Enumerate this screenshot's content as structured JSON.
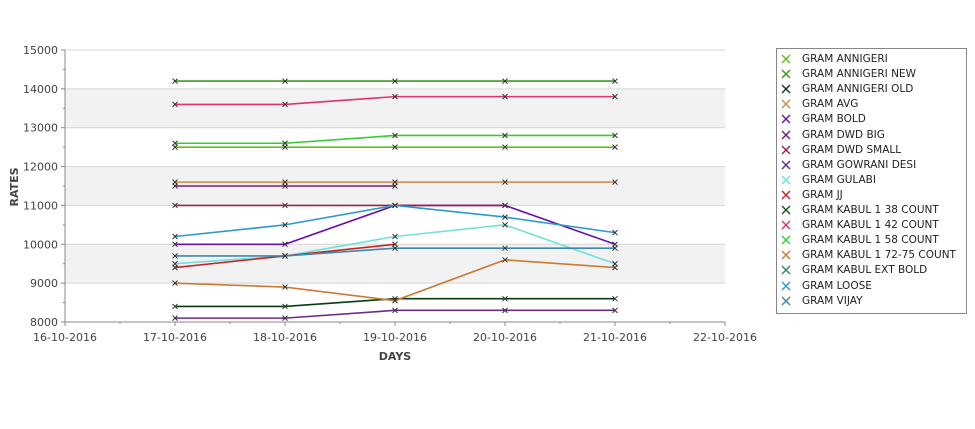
{
  "chart_data": {
    "type": "line",
    "title": "",
    "xlabel": "DAYS",
    "ylabel": "RATES",
    "ylim": [
      8000,
      15000
    ],
    "yticks": [
      "8000",
      "9000",
      "10000",
      "11000",
      "12000",
      "13000",
      "14000",
      "15000"
    ],
    "xlim": [
      "16-10-2016",
      "22-10-2016"
    ],
    "x_tick_labels": [
      "16-10-2016",
      "17-10-2016",
      "18-10-2016",
      "19-10-2016",
      "20-10-2016",
      "21-10-2016",
      "22-10-2016"
    ],
    "x": [
      "17-10-2016",
      "18-10-2016",
      "19-10-2016",
      "20-10-2016",
      "21-10-2016"
    ],
    "grid": true,
    "legend_position": "right",
    "series": [
      {
        "name": "GRAM ANNIGERI",
        "color": "#5fbf1f",
        "values": [
          12500,
          12500,
          12500,
          12500,
          12500
        ]
      },
      {
        "name": "GRAM ANNIGERI NEW",
        "color": "#3a9a1a",
        "values": [
          14200,
          14200,
          14200,
          14200,
          14200
        ]
      },
      {
        "name": "GRAM ANNIGERI OLD",
        "color": "#0a3a12",
        "values": [
          8400,
          8400,
          8600,
          8600,
          8600
        ]
      },
      {
        "name": "GRAM AVG",
        "color": "#d08a4a",
        "values": [
          11600,
          11600,
          11600,
          11600,
          11600
        ]
      },
      {
        "name": "GRAM BOLD",
        "color": "#6a10b0",
        "values": [
          10000,
          10000,
          11000,
          11000,
          10000
        ]
      },
      {
        "name": "GRAM DWD BIG",
        "color": "#7a1a7a",
        "values": [
          11500,
          11500,
          11500,
          null,
          null
        ]
      },
      {
        "name": "GRAM DWD SMALL",
        "color": "#a0204a",
        "values": [
          11000,
          11000,
          11000,
          11000,
          null
        ]
      },
      {
        "name": "GRAM GOWRANI DESI",
        "color": "#6a2c8a",
        "values": [
          8100,
          8100,
          8300,
          8300,
          8300
        ]
      },
      {
        "name": "GRAM GULABI",
        "color": "#6ee0e0",
        "values": [
          9500,
          9700,
          10200,
          10500,
          9500
        ]
      },
      {
        "name": "GRAM JJ",
        "color": "#cc2222",
        "values": [
          9400,
          9700,
          10000,
          null,
          null
        ]
      },
      {
        "name": "GRAM KABUL 1 38 COUNT",
        "color": "#1a5a1a",
        "values": [
          null,
          null,
          null,
          null,
          null
        ]
      },
      {
        "name": "GRAM KABUL 1 42 COUNT",
        "color": "#e0336a",
        "values": [
          13600,
          13600,
          13800,
          13800,
          13800
        ]
      },
      {
        "name": "GRAM KABUL 1 58 COUNT",
        "color": "#33cc33",
        "values": [
          12600,
          12600,
          12800,
          12800,
          12800
        ]
      },
      {
        "name": "GRAM KABUL 1 72-75 COUNT",
        "color": "#cc7a33",
        "values": [
          9000,
          8900,
          8550,
          9600,
          9400
        ]
      },
      {
        "name": "GRAM KABUL EXT BOLD",
        "color": "#2a8a6a",
        "values": [
          null,
          null,
          null,
          null,
          null
        ]
      },
      {
        "name": "GRAM LOOSE",
        "color": "#2a9acc",
        "values": [
          10200,
          10500,
          11000,
          10700,
          10300
        ]
      },
      {
        "name": "GRAM VIJAY",
        "color": "#3a8aaa",
        "values": [
          9700,
          9700,
          9900,
          9900,
          9900
        ]
      }
    ]
  }
}
